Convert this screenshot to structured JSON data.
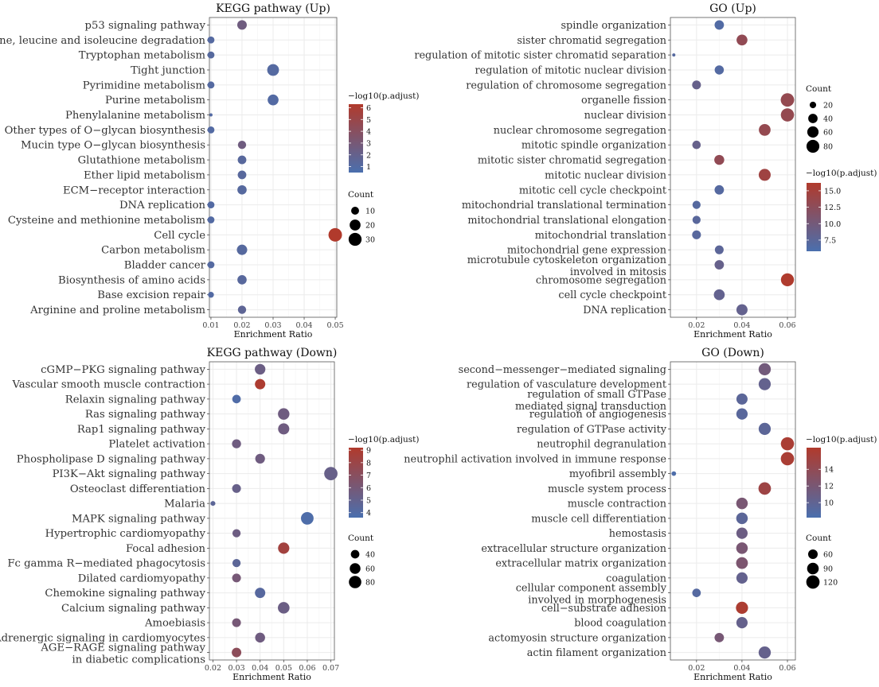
{
  "colors": {
    "low": "#4a6fae",
    "high": "#b13a2c",
    "grid": "#ebebeb",
    "panel_border": "#555555"
  },
  "chart_data": [
    {
      "id": "kegg_up",
      "type": "scatter",
      "title": "KEGG pathway (Up)",
      "xlabel": "Enrichment Ratio",
      "xlim": [
        0.0095,
        0.0505
      ],
      "xticks": [
        "0.01",
        "0.02",
        "0.03",
        "0.04",
        "0.05"
      ],
      "categories": [
        "p53 signaling pathway",
        "Valine, leucine and isoleucine degradation",
        "Tryptophan metabolism",
        "Tight junction",
        "Pyrimidine metabolism",
        "Purine metabolism",
        "Phenylalanine metabolism",
        "Other types of O−glycan biosynthesis",
        "Mucin type O−glycan biosynthesis",
        "Glutathione metabolism",
        "Ether lipid metabolism",
        "ECM−receptor interaction",
        "DNA replication",
        "Cysteine and methionine metabolism",
        "Cell cycle",
        "Carbon metabolism",
        "Bladder cancer",
        "Biosynthesis of amino acids",
        "Base excision repair",
        "Arginine and proline metabolism"
      ],
      "x": [
        0.02,
        0.01,
        0.01,
        0.03,
        0.01,
        0.03,
        0.01,
        0.01,
        0.02,
        0.02,
        0.02,
        0.02,
        0.01,
        0.01,
        0.05,
        0.02,
        0.01,
        0.02,
        0.01,
        0.02
      ],
      "count": [
        15,
        8,
        8,
        24,
        8,
        20,
        4,
        8,
        11,
        12,
        12,
        14,
        8,
        8,
        33,
        18,
        8,
        14,
        6,
        11
      ],
      "color_value": [
        2.6,
        1.1,
        1.2,
        1.1,
        1.1,
        1.0,
        1.0,
        1.0,
        2.6,
        1.3,
        1.3,
        1.2,
        1.0,
        1.0,
        6.3,
        1.2,
        1.1,
        1.3,
        1.0,
        1.6
      ],
      "color_legend": {
        "title": "−log10(p.adjust)",
        "min": 0.5,
        "max": 6.3,
        "ticks": [
          "1",
          "2",
          "3",
          "4",
          "5",
          "6"
        ]
      },
      "size_legend": {
        "title": "Count",
        "min": 4,
        "max": 33,
        "ticks": [
          "10",
          "20",
          "30"
        ]
      }
    },
    {
      "id": "go_up",
      "type": "scatter",
      "title": "GO (Up)",
      "xlabel": "Enrichment Ratio",
      "xlim": [
        0.0085,
        0.0635
      ],
      "xticks": [
        "0.02",
        "0.04",
        "0.06"
      ],
      "categories": [
        "spindle organization",
        "sister chromatid segregation",
        "regulation of mitotic sister chromatid separation",
        "regulation of mitotic nuclear division",
        "regulation of chromosome segregation",
        "organelle fission",
        "nuclear division",
        "nuclear chromosome segregation",
        "mitotic spindle organization",
        "mitotic sister chromatid segregation",
        "mitotic nuclear division",
        "mitotic cell cycle checkpoint",
        "mitochondrial translational termination",
        "mitochondrial translational elongation",
        "mitochondrial translation",
        "mitochondrial gene expression",
        "microtubule cytoskeleton organization\ninvolved in mitosis",
        "chromosome segregation",
        "cell cycle checkpoint",
        "DNA replication"
      ],
      "x": [
        0.03,
        0.04,
        0.01,
        0.03,
        0.02,
        0.06,
        0.06,
        0.05,
        0.02,
        0.03,
        0.05,
        0.03,
        0.02,
        0.02,
        0.02,
        0.03,
        0.03,
        0.06,
        0.03,
        0.04
      ],
      "count": [
        40,
        55,
        12,
        38,
        35,
        88,
        85,
        65,
        32,
        45,
        68,
        40,
        30,
        30,
        35,
        35,
        40,
        82,
        55,
        58
      ],
      "color_value": [
        6.6,
        13.0,
        7.0,
        6.8,
        8.6,
        13.3,
        13.3,
        13.3,
        8.6,
        13.0,
        14.4,
        6.9,
        7.0,
        7.3,
        7.2,
        7.6,
        8.6,
        16.0,
        8.3,
        8.4
      ],
      "color_legend": {
        "title": "−log10(p.adjust)",
        "min": 5.8,
        "max": 16.2,
        "ticks": [
          "7.5",
          "10.0",
          "12.5",
          "15.0"
        ]
      },
      "size_legend": {
        "title": "Count",
        "min": 12,
        "max": 90,
        "ticks": [
          "20",
          "40",
          "60",
          "80"
        ]
      }
    },
    {
      "id": "kegg_down",
      "type": "scatter",
      "title": "KEGG pathway (Down)",
      "xlabel": "Enrichment Ratio",
      "xlim": [
        0.0185,
        0.0715
      ],
      "xticks": [
        "0.02",
        "0.03",
        "0.04",
        "0.05",
        "0.06",
        "0.07"
      ],
      "categories": [
        "cGMP−PKG signaling pathway",
        "Vascular smooth muscle contraction",
        "Relaxin signaling pathway",
        "Ras signaling pathway",
        "Rap1 signaling pathway",
        "Platelet activation",
        "Phospholipase D signaling pathway",
        "PI3K−Akt signaling pathway",
        "Osteoclast differentiation",
        "Malaria",
        "MAPK signaling pathway",
        "Hypertrophic cardiomyopathy",
        "Focal adhesion",
        "Fc gamma R−mediated phagocytosis",
        "Dilated cardiomyopathy",
        "Chemokine signaling pathway",
        "Calcium signaling pathway",
        "Amoebiasis",
        "Adrenergic signaling in cardiomyocytes",
        "AGE−RAGE signaling pathway\nin diabetic complications"
      ],
      "x": [
        0.04,
        0.04,
        0.03,
        0.05,
        0.05,
        0.03,
        0.04,
        0.07,
        0.03,
        0.02,
        0.06,
        0.03,
        0.05,
        0.03,
        0.03,
        0.04,
        0.05,
        0.03,
        0.04,
        0.03
      ],
      "count": [
        58,
        56,
        40,
        68,
        65,
        44,
        50,
        92,
        42,
        22,
        82,
        38,
        66,
        38,
        42,
        56,
        70,
        42,
        52,
        48
      ],
      "color_value": [
        5.4,
        9.0,
        3.9,
        5.6,
        5.6,
        5.6,
        5.6,
        5.2,
        5.2,
        4.6,
        3.8,
        5.5,
        8.4,
        4.6,
        6.0,
        4.3,
        5.4,
        6.0,
        5.6,
        7.2
      ],
      "color_legend": {
        "title": "−log10(p.adjust)",
        "min": 3.6,
        "max": 9.2,
        "ticks": [
          "4",
          "5",
          "6",
          "7",
          "8",
          "9"
        ]
      },
      "size_legend": {
        "title": "Count",
        "min": 20,
        "max": 95,
        "ticks": [
          "40",
          "60",
          "80"
        ]
      }
    },
    {
      "id": "go_down",
      "type": "scatter",
      "title": "GO (Down)",
      "xlabel": "Enrichment Ratio",
      "xlim": [
        0.0085,
        0.0635
      ],
      "xticks": [
        "0.02",
        "0.04",
        "0.06"
      ],
      "categories": [
        "second−messenger−mediated signaling",
        "regulation of vasculature development",
        "regulation of small GTPase\nmediated signal transduction",
        "regulation of angiogenesis",
        "regulation of GTPase activity",
        "neutrophil degranulation",
        "neutrophil activation involved in immune response",
        "myofibril assembly",
        "muscle system process",
        "muscle contraction",
        "muscle cell differentiation",
        "hemostasis",
        "extracellular structure organization",
        "extracellular matrix organization",
        "coagulation",
        "cellular component assembly\ninvolved in morphogenesis",
        "cell−substrate adhesion",
        "blood coagulation",
        "actomyosin structure organization",
        "actin filament organization"
      ],
      "x": [
        0.05,
        0.05,
        0.04,
        0.04,
        0.05,
        0.06,
        0.06,
        0.01,
        0.05,
        0.04,
        0.04,
        0.04,
        0.04,
        0.04,
        0.04,
        0.02,
        0.04,
        0.04,
        0.03,
        0.05
      ],
      "count": [
        100,
        98,
        82,
        85,
        98,
        118,
        120,
        22,
        105,
        88,
        88,
        84,
        88,
        92,
        84,
        48,
        98,
        84,
        58,
        100
      ],
      "color_value": [
        11.5,
        10.3,
        9.6,
        9.4,
        9.7,
        16.0,
        16.0,
        8.5,
        15.0,
        12.0,
        9.6,
        11.0,
        12.0,
        12.3,
        10.3,
        9.1,
        16.2,
        10.4,
        11.9,
        10.4
      ],
      "color_legend": {
        "title": "−log10(p.adjust)",
        "min": 8.2,
        "max": 16.6,
        "ticks": [
          "10",
          "12",
          "14"
        ]
      },
      "size_legend": {
        "title": "Count",
        "min": 20,
        "max": 125,
        "ticks": [
          "60",
          "90",
          "120"
        ]
      }
    }
  ]
}
